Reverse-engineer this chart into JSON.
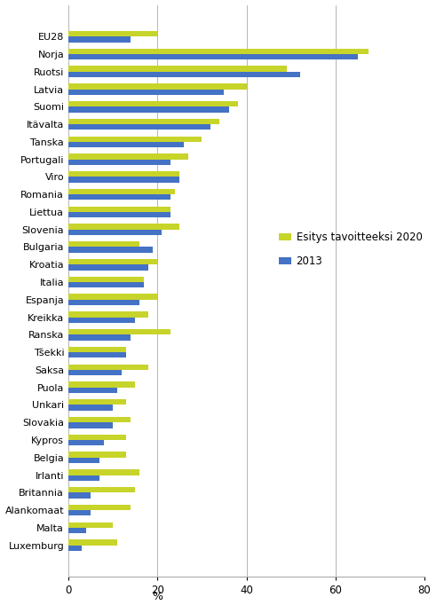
{
  "categories": [
    "EU28",
    "Norja",
    "Ruotsi",
    "Latvia",
    "Suomi",
    "Itävalta",
    "Tanska",
    "Portugali",
    "Viro",
    "Romania",
    "Liettua",
    "Slovenia",
    "Bulgaria",
    "Kroatia",
    "Italia",
    "Espanja",
    "Kreikka",
    "Ranska",
    "Tšekki",
    "Saksa",
    "Puola",
    "Unkari",
    "Slovakia",
    "Kypros",
    "Belgia",
    "Irlanti",
    "Britannia",
    "Alankomaat",
    "Malta",
    "Luxemburg"
  ],
  "values_2013": [
    14,
    65,
    52,
    35,
    36,
    32,
    26,
    23,
    25,
    23,
    23,
    21,
    19,
    18,
    17,
    16,
    15,
    14,
    13,
    12,
    11,
    10,
    10,
    8,
    7,
    7,
    5,
    5,
    4,
    3
  ],
  "values_2020": [
    20,
    67.5,
    49,
    40,
    38,
    34,
    30,
    27,
    25,
    24,
    23,
    25,
    16,
    20,
    17,
    20,
    18,
    23,
    13,
    18,
    15,
    13,
    14,
    13,
    13,
    16,
    15,
    14,
    10,
    11
  ],
  "color_2013": "#4472c4",
  "color_2020": "#c7d42a",
  "xlabel": "%",
  "xlim": [
    0,
    80
  ],
  "xticks": [
    0,
    20,
    40,
    60,
    80
  ],
  "legend_2020": "Esitys tavoitteeksi 2020",
  "legend_2013": "2013",
  "title": "",
  "bar_height": 0.32,
  "figwidth": 4.91,
  "figheight": 6.82
}
